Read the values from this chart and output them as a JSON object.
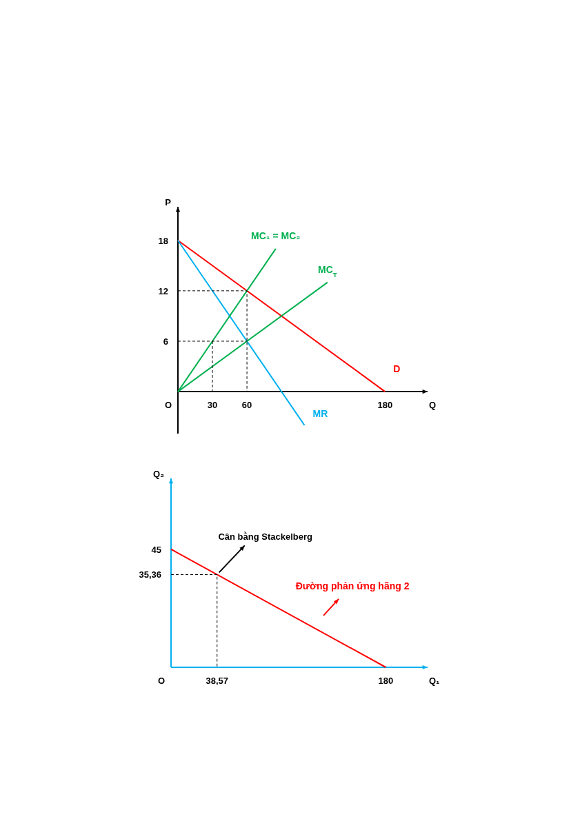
{
  "chart_data": [
    {
      "type": "line",
      "xlabel": "Q",
      "ylabel": "P",
      "xlim": [
        0,
        217
      ],
      "ylim": [
        -5,
        22
      ],
      "xticks": [
        30,
        60,
        180
      ],
      "yticks": [
        6,
        12,
        18
      ],
      "annotations": [
        "O"
      ],
      "series": [
        {
          "name": "D",
          "color": "#ff0000",
          "x": [
            0,
            180
          ],
          "values": [
            18,
            0
          ]
        },
        {
          "name": "MR",
          "color": "#00b0f0",
          "x": [
            0,
            110
          ],
          "values": [
            18,
            -4
          ]
        },
        {
          "name": "MC₁ = MC₂",
          "color": "#00b050",
          "x": [
            0,
            85
          ],
          "values": [
            0,
            17
          ]
        },
        {
          "name": "MC$_{T}$",
          "color": "#00b050",
          "x": [
            0,
            130
          ],
          "values": [
            0,
            13
          ]
        },
        {
          "color": "#000000",
          "line_style": "dashed",
          "x": [
            0,
            60,
            60
          ],
          "values": [
            12,
            12,
            0
          ]
        },
        {
          "color": "#000000",
          "line_style": "dashed",
          "x": [
            0,
            60
          ],
          "values": [
            6,
            6
          ]
        },
        {
          "color": "#000000",
          "line_style": "dashed",
          "x": [
            30,
            30
          ],
          "values": [
            6,
            0
          ]
        }
      ]
    },
    {
      "type": "line",
      "xlabel": "Q₁",
      "ylabel": "Q₂",
      "xlim": [
        0,
        215
      ],
      "ylim": [
        0,
        72
      ],
      "xticks": [
        {
          "value": 38.57,
          "label": "38,57"
        },
        180
      ],
      "yticks": [
        {
          "value": 35.36,
          "label": "35,36"
        },
        45
      ],
      "annotations": [
        "O",
        {
          "text": "Cân bằng Stackelberg",
          "x": 38.57,
          "y": 35.36
        }
      ],
      "series": [
        {
          "name": "Đường phản ứng hãng 2",
          "color": "#ff0000",
          "x": [
            0,
            180
          ],
          "values": [
            45,
            0
          ]
        },
        {
          "color": "#000000",
          "line_style": "dashed",
          "x": [
            0,
            38.57,
            38.57
          ],
          "values": [
            35.36,
            35.36,
            0
          ]
        }
      ]
    }
  ]
}
